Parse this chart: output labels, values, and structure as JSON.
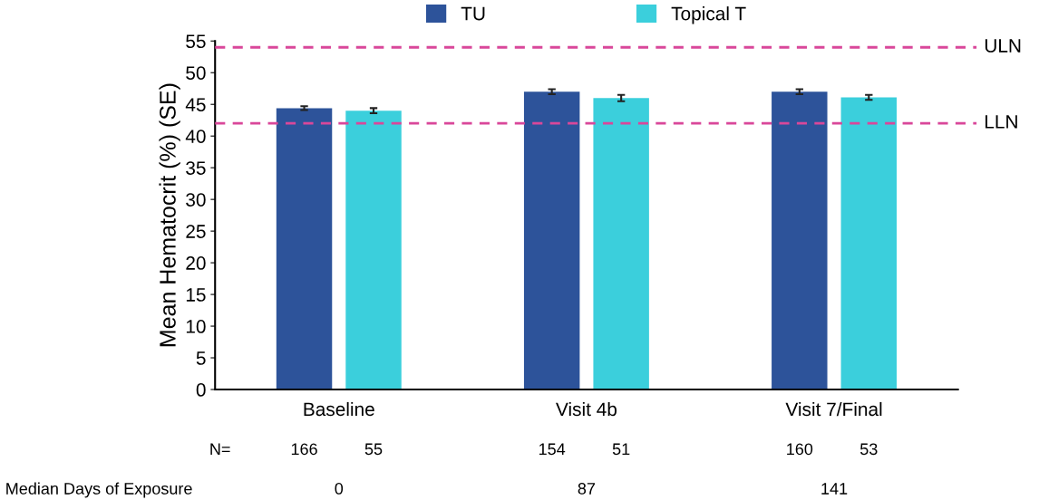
{
  "chart_data": {
    "type": "bar",
    "ylabel": "Mean Hematocrit (%) (SE)",
    "categories": [
      "Baseline",
      "Visit 4b",
      "Visit 7/Final"
    ],
    "series": [
      {
        "name": "TU",
        "color": "#2d539a",
        "values": [
          44.4,
          47.0,
          47.0
        ],
        "errors": [
          0.3,
          0.4,
          0.4
        ]
      },
      {
        "name": "Topical T",
        "color": "#3bcfdc",
        "values": [
          44.0,
          46.0,
          46.1
        ],
        "errors": [
          0.4,
          0.5,
          0.4
        ]
      }
    ],
    "ylim": [
      0,
      55
    ],
    "yticks": [
      0,
      5,
      10,
      15,
      20,
      25,
      30,
      35,
      40,
      45,
      50,
      55
    ],
    "ref_lines": [
      {
        "axis": "y",
        "value": 54,
        "label": "ULN",
        "color": "#d9479a",
        "line_style": "dashed"
      },
      {
        "axis": "y",
        "value": 42,
        "label": "LLN",
        "color": "#d9479a",
        "line_style": "dashed"
      }
    ],
    "legend": "top",
    "grid": false,
    "annotations": [
      "N=",
      "166",
      "55",
      "154",
      "51",
      "160",
      "53",
      "Median Days of Exposure",
      "0",
      "87",
      "141"
    ]
  }
}
